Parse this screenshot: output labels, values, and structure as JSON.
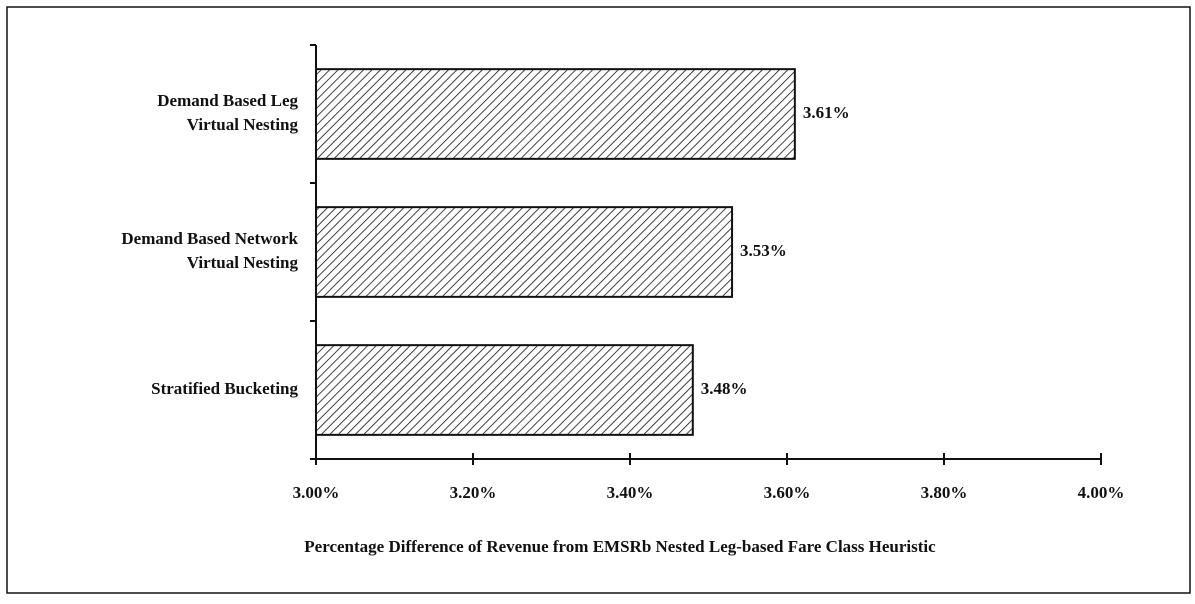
{
  "chart_data": {
    "type": "hbar",
    "categories": [
      "Demand Based Leg\nVirtual Nesting",
      "Demand Based Network\nVirtual Nesting",
      "Stratified Bucketing"
    ],
    "values": [
      3.61,
      3.53,
      3.48
    ],
    "value_labels": [
      "3.61%",
      "3.53%",
      "3.48%"
    ],
    "color": "#111111",
    "xlim": [
      3,
      4
    ],
    "xticks": [
      {
        "value": 3,
        "label": "3.00%"
      },
      {
        "value": 3.2,
        "label": "3.20%"
      },
      {
        "value": 3.4,
        "label": "3.40%"
      },
      {
        "value": 3.6,
        "label": "3.60%"
      },
      {
        "value": 3.8,
        "label": "3.80%"
      },
      {
        "value": 4,
        "label": "4.00%"
      }
    ],
    "xlabel": "Percentage Difference of Revenue from EMSRb Nested Leg-based Fare Class Heuristic",
    "grid": false
  }
}
